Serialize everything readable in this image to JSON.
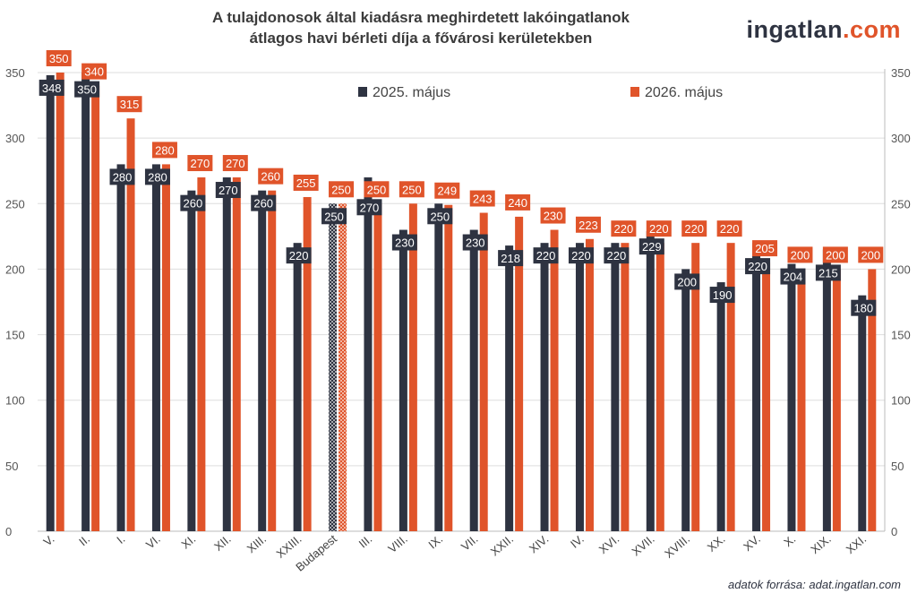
{
  "title": {
    "line1": "A tulajdonosok által kiadásra meghirdetett lakóingatlanok",
    "line2": "átlagos havi bérleti díja a fővárosi kerületekben"
  },
  "brand": {
    "part1": "ingatlan",
    "part2": ".com"
  },
  "source": "adatok forrása: adat.ingatlan.com",
  "colors": {
    "series1": "#2e3341",
    "series2": "#e0542a",
    "grid": "#dddddd"
  },
  "chart_data": {
    "type": "bar",
    "categories": [
      "V.",
      "II.",
      "I.",
      "VI.",
      "XI.",
      "XII.",
      "XIII.",
      "XXIII.",
      "Budapest",
      "III.",
      "VIII.",
      "IX.",
      "VII.",
      "XXII.",
      "XIV.",
      "IV.",
      "XVI.",
      "XVII.",
      "XVIII.",
      "XX.",
      "XV.",
      "X.",
      "XIX.",
      "XXI."
    ],
    "highlighted_category": "Budapest",
    "series": [
      {
        "name": "2025. május",
        "values": [
          348,
          350,
          280,
          280,
          260,
          270,
          260,
          220,
          250,
          270,
          230,
          250,
          230,
          218,
          220,
          220,
          220,
          229,
          200,
          190,
          220,
          204,
          215,
          180
        ]
      },
      {
        "name": "2026. május",
        "values": [
          350,
          340,
          315,
          280,
          270,
          270,
          260,
          255,
          250,
          250,
          250,
          249,
          243,
          240,
          230,
          223,
          220,
          220,
          220,
          220,
          205,
          200,
          200,
          200
        ]
      }
    ],
    "ylim": [
      0,
      350
    ],
    "yticks": [
      0,
      50,
      100,
      150,
      200,
      250,
      300,
      350
    ],
    "secondary_y_axis": true,
    "grid": true,
    "legend": "top"
  }
}
